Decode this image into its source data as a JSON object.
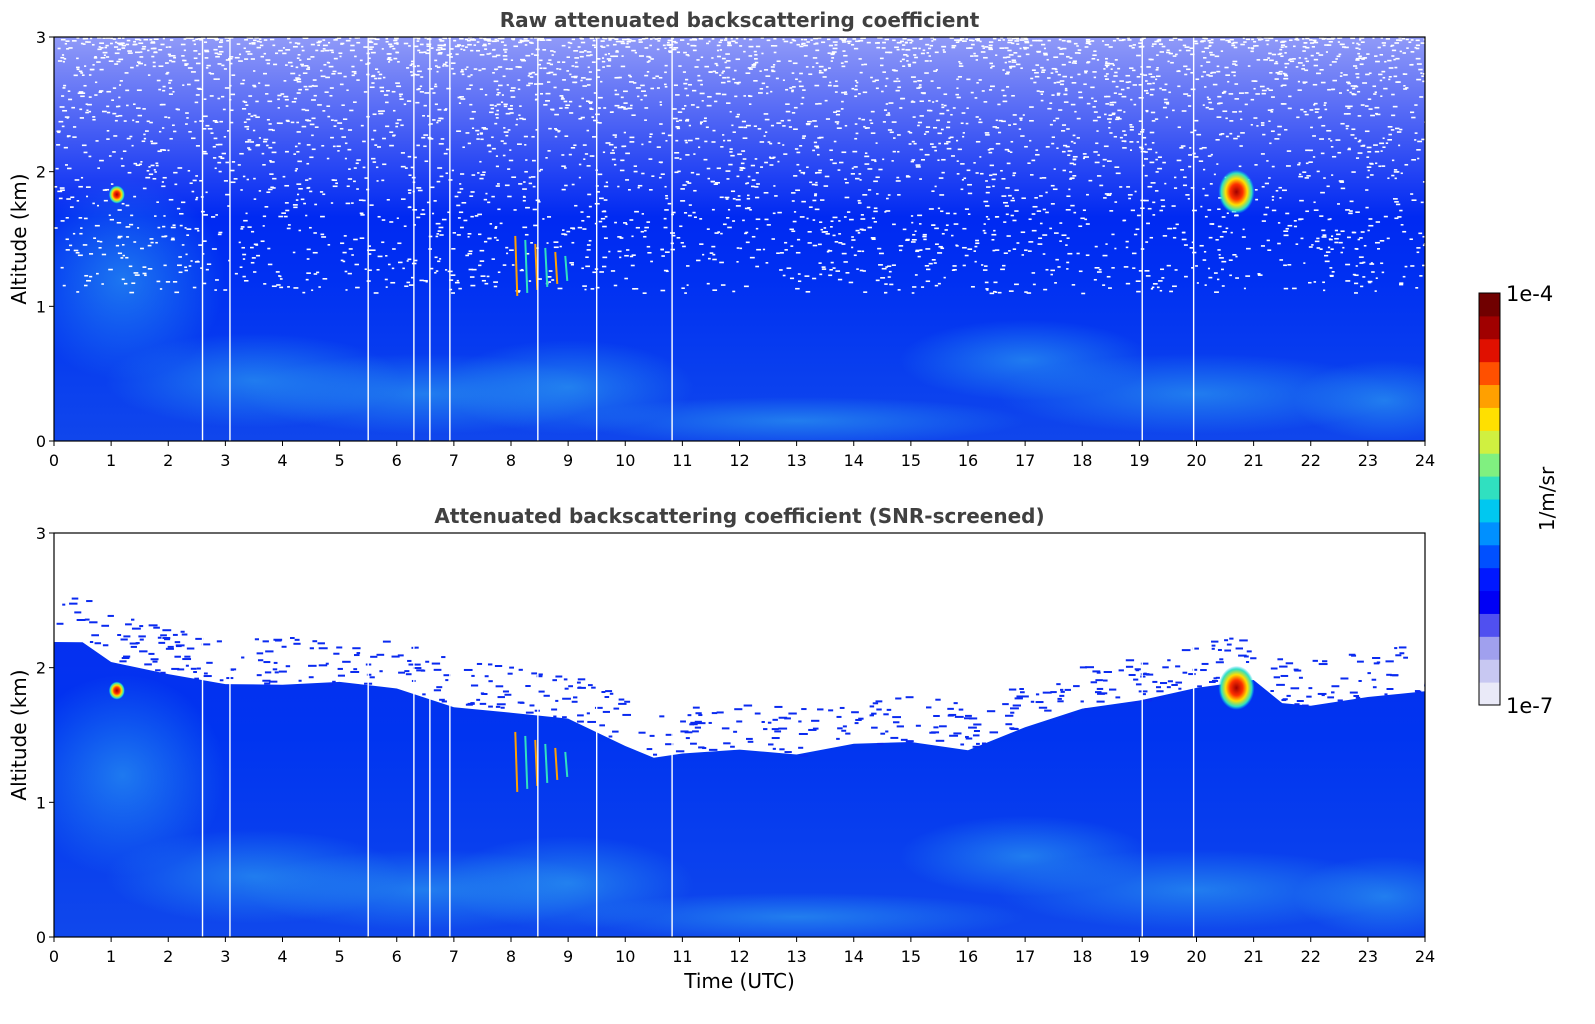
{
  "chart_data": [
    {
      "type": "heatmap",
      "title": "Raw attenuated backscattering coefficient",
      "xlabel": "",
      "ylabel": "Altitude (km)",
      "xlim": [
        0,
        24
      ],
      "ylim": [
        0,
        3
      ],
      "x_ticks": [
        0,
        1,
        2,
        3,
        4,
        5,
        6,
        7,
        8,
        9,
        10,
        11,
        12,
        13,
        14,
        15,
        16,
        17,
        18,
        19,
        20,
        21,
        22,
        23,
        24
      ],
      "y_ticks": [
        0,
        1,
        2,
        3
      ],
      "gap_times_utc": [
        2.6,
        3.08,
        5.5,
        6.3,
        6.58,
        6.93,
        8.47,
        9.5,
        10.82,
        19.05,
        19.95
      ],
      "noise_onset_km": 1.1,
      "features": [
        {
          "label": "small cloud",
          "time_utc": 1.1,
          "altitude_km": 1.83,
          "intensity": "1e-4"
        },
        {
          "label": "cloud",
          "time_utc": 20.7,
          "altitude_km": 1.85,
          "intensity": "1e-4"
        },
        {
          "label": "aerosol streaks",
          "time_utc": 8.6,
          "altitude_km": 1.3,
          "intensity": "1e-5"
        }
      ]
    },
    {
      "type": "heatmap",
      "title": "Attenuated backscattering coefficient (SNR-screened)",
      "xlabel": "Time (UTC)",
      "ylabel": "Altitude (km)",
      "xlim": [
        0,
        24
      ],
      "ylim": [
        0,
        3
      ],
      "x_ticks": [
        0,
        1,
        2,
        3,
        4,
        5,
        6,
        7,
        8,
        9,
        10,
        11,
        12,
        13,
        14,
        15,
        16,
        17,
        18,
        19,
        20,
        21,
        22,
        23,
        24
      ],
      "y_ticks": [
        0,
        1,
        2,
        3
      ],
      "gap_times_utc": [
        2.6,
        3.08,
        5.5,
        6.3,
        6.58,
        6.93,
        8.47,
        9.5,
        10.82,
        19.05,
        19.95
      ],
      "screened_top_km": [
        [
          0,
          2.2
        ],
        [
          0.5,
          2.2
        ],
        [
          1,
          2.05
        ],
        [
          2,
          1.95
        ],
        [
          3,
          1.88
        ],
        [
          4,
          1.88
        ],
        [
          5,
          1.88
        ],
        [
          6,
          1.85
        ],
        [
          7,
          1.72
        ],
        [
          8,
          1.68
        ],
        [
          9,
          1.62
        ],
        [
          10,
          1.42
        ],
        [
          10.5,
          1.32
        ],
        [
          11,
          1.38
        ],
        [
          12,
          1.4
        ],
        [
          13,
          1.35
        ],
        [
          14,
          1.42
        ],
        [
          15,
          1.45
        ],
        [
          16,
          1.4
        ],
        [
          17,
          1.55
        ],
        [
          18,
          1.68
        ],
        [
          19,
          1.75
        ],
        [
          20,
          1.85
        ],
        [
          21,
          1.9
        ],
        [
          21.5,
          1.72
        ],
        [
          22,
          1.72
        ],
        [
          23,
          1.8
        ],
        [
          24,
          1.82
        ]
      ],
      "features": [
        {
          "label": "small cloud",
          "time_utc": 1.1,
          "altitude_km": 1.83,
          "intensity": "1e-4"
        },
        {
          "label": "cloud",
          "time_utc": 20.7,
          "altitude_km": 1.85,
          "intensity": "1e-4"
        },
        {
          "label": "aerosol streaks",
          "time_utc": 8.6,
          "altitude_km": 1.3,
          "intensity": "1e-5"
        }
      ]
    }
  ],
  "colorbar": {
    "max_label": "1e-4",
    "min_label": "1e-7",
    "unit_label": "1/m/sr",
    "colors": [
      "#eaeaf8",
      "#c8c8f2",
      "#a0a0ee",
      "#5050f0",
      "#0000f5",
      "#0018ff",
      "#0050ff",
      "#0090ff",
      "#00c8f0",
      "#30e0c0",
      "#80f080",
      "#d0f040",
      "#ffe000",
      "#ffa000",
      "#ff5000",
      "#e01000",
      "#a00000",
      "#700000"
    ]
  }
}
